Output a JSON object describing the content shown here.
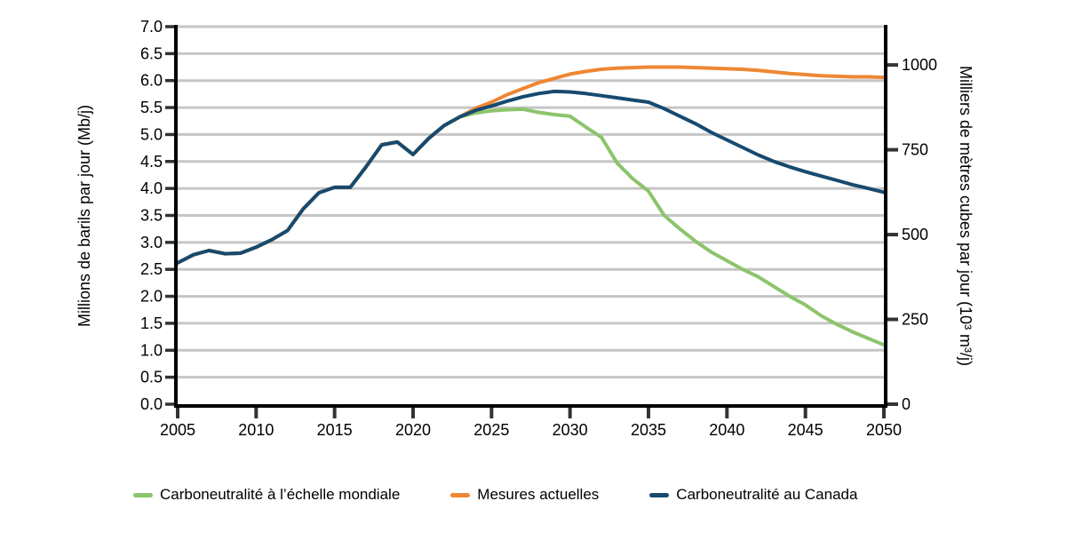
{
  "chart_data": {
    "type": "line",
    "title": "",
    "x": [
      2005,
      2006,
      2007,
      2008,
      2009,
      2010,
      2011,
      2012,
      2013,
      2014,
      2015,
      2016,
      2017,
      2018,
      2019,
      2020,
      2021,
      2022,
      2023,
      2024,
      2025,
      2026,
      2027,
      2028,
      2029,
      2030,
      2031,
      2032,
      2033,
      2034,
      2035,
      2036,
      2037,
      2038,
      2039,
      2040,
      2041,
      2042,
      2043,
      2044,
      2045,
      2046,
      2047,
      2048,
      2049,
      2050
    ],
    "series": [
      {
        "name": "Carboneutralité à l’échelle mondiale",
        "color": "#8cc46c",
        "values": [
          2.62,
          2.77,
          2.85,
          2.79,
          2.8,
          2.91,
          3.05,
          3.22,
          3.62,
          3.92,
          4.02,
          4.02,
          4.4,
          4.81,
          4.86,
          4.63,
          4.93,
          5.17,
          5.33,
          5.4,
          5.44,
          5.46,
          5.47,
          5.41,
          5.37,
          5.34,
          5.14,
          4.95,
          4.47,
          4.18,
          3.95,
          3.5,
          3.25,
          3.02,
          2.82,
          2.66,
          2.5,
          2.36,
          2.18,
          2.0,
          1.84,
          1.64,
          1.48,
          1.34,
          1.22,
          1.1
        ]
      },
      {
        "name": "Mesures actuelles",
        "color": "#ef8733",
        "values": [
          2.62,
          2.77,
          2.85,
          2.79,
          2.8,
          2.91,
          3.05,
          3.22,
          3.62,
          3.92,
          4.02,
          4.02,
          4.4,
          4.81,
          4.86,
          4.63,
          4.93,
          5.17,
          5.33,
          5.49,
          5.6,
          5.74,
          5.85,
          5.96,
          6.04,
          6.12,
          6.17,
          6.21,
          6.23,
          6.24,
          6.25,
          6.25,
          6.25,
          6.24,
          6.23,
          6.22,
          6.21,
          6.19,
          6.16,
          6.13,
          6.11,
          6.09,
          6.08,
          6.07,
          6.07,
          6.06
        ]
      },
      {
        "name": "Carboneutralité au Canada",
        "color": "#174a6f",
        "values": [
          2.62,
          2.77,
          2.85,
          2.79,
          2.8,
          2.91,
          3.05,
          3.22,
          3.62,
          3.92,
          4.02,
          4.02,
          4.4,
          4.81,
          4.86,
          4.63,
          4.93,
          5.17,
          5.33,
          5.45,
          5.53,
          5.62,
          5.7,
          5.76,
          5.8,
          5.79,
          5.76,
          5.72,
          5.68,
          5.64,
          5.6,
          5.48,
          5.34,
          5.2,
          5.04,
          4.9,
          4.76,
          4.62,
          4.5,
          4.4,
          4.31,
          4.23,
          4.15,
          4.07,
          4.0,
          3.93
        ]
      }
    ],
    "y_left": {
      "label": "Millions de barils par jour (Mb/j)",
      "min": 0.0,
      "max": 7.0,
      "tick_step": 0.5,
      "ticks": [
        0.0,
        0.5,
        1.0,
        1.5,
        2.0,
        2.5,
        3.0,
        3.5,
        4.0,
        4.5,
        5.0,
        5.5,
        6.0,
        6.5,
        7.0
      ]
    },
    "y_right": {
      "label": "Milliers de mètres cubes par jour (10³ m³/j)",
      "ticks": [
        0,
        250,
        500,
        750,
        1000
      ],
      "conversion_factor_from_left": 158.99
    },
    "x_axis": {
      "label": "",
      "ticks": [
        2005,
        2010,
        2015,
        2020,
        2025,
        2030,
        2035,
        2040,
        2045,
        2050
      ]
    },
    "grid": "horizontal",
    "legend_position": "bottom",
    "colors": {
      "grid": "#c6c6c6",
      "axis": "#000000",
      "tick": "#333333",
      "text": "#000000",
      "background": "#ffffff"
    }
  }
}
